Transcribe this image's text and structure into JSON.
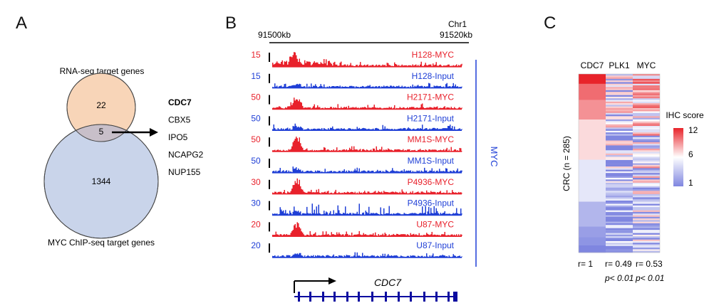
{
  "panel_a": {
    "letter": "A",
    "top_label": "RNA-seq target genes",
    "bottom_label": "MYC ChIP-seq target genes",
    "only_rna": "22",
    "overlap": "5",
    "only_chip": "1344",
    "genes": [
      {
        "name": "CDC7",
        "bold": true
      },
      {
        "name": "CBX5",
        "bold": false
      },
      {
        "name": "IPO5",
        "bold": false
      },
      {
        "name": "NCAPG2",
        "bold": false
      },
      {
        "name": "NUP155",
        "bold": false
      }
    ],
    "colors": {
      "rna": "#f8d5b8",
      "chip": "#c9d4ea",
      "overlap": "#c8bfc9"
    }
  },
  "panel_b": {
    "letter": "B",
    "chrom": "Chr1",
    "coord_start": "91500kb",
    "coord_end": "91520kb",
    "side_label": "MYC",
    "gene": "CDC7",
    "colors": {
      "myc": "#e8212b",
      "input": "#1f3fd6",
      "gene": "#0a0aa0"
    },
    "tracks": [
      {
        "label": "H128-MYC",
        "scale": "15",
        "kind": "myc"
      },
      {
        "label": "H128-Input",
        "scale": "15",
        "kind": "input"
      },
      {
        "label": "H2171-MYC",
        "scale": "50",
        "kind": "myc"
      },
      {
        "label": "H2171-Input",
        "scale": "50",
        "kind": "input"
      },
      {
        "label": "MM1S-MYC",
        "scale": "50",
        "kind": "myc"
      },
      {
        "label": "MM1S-Input",
        "scale": "50",
        "kind": "input"
      },
      {
        "label": "P4936-MYC",
        "scale": "30",
        "kind": "myc"
      },
      {
        "label": "P4936-Input",
        "scale": "30",
        "kind": "input"
      },
      {
        "label": "U87-MYC",
        "scale": "20",
        "kind": "myc"
      },
      {
        "label": "U87-Input",
        "scale": "20",
        "kind": "input"
      }
    ]
  },
  "panel_c": {
    "letter": "C",
    "columns": [
      "CDC7",
      "PLK1",
      "MYC"
    ],
    "row_label": "CRC (n = 285)",
    "legend_title": "IHC score",
    "legend_ticks": [
      "12",
      "6",
      "1"
    ],
    "correlations": [
      "r= 1",
      "r= 0.49",
      "r= 0.53"
    ],
    "pvalues": [
      "",
      "p< 0.01",
      "p< 0.01"
    ],
    "colors": {
      "high": "#e8232a",
      "mid": "#ffffff",
      "low": "#7f86e0"
    },
    "cdc7_block_scores": [
      12,
      10,
      9,
      7,
      5,
      3,
      2,
      1.6,
      1
    ]
  }
}
